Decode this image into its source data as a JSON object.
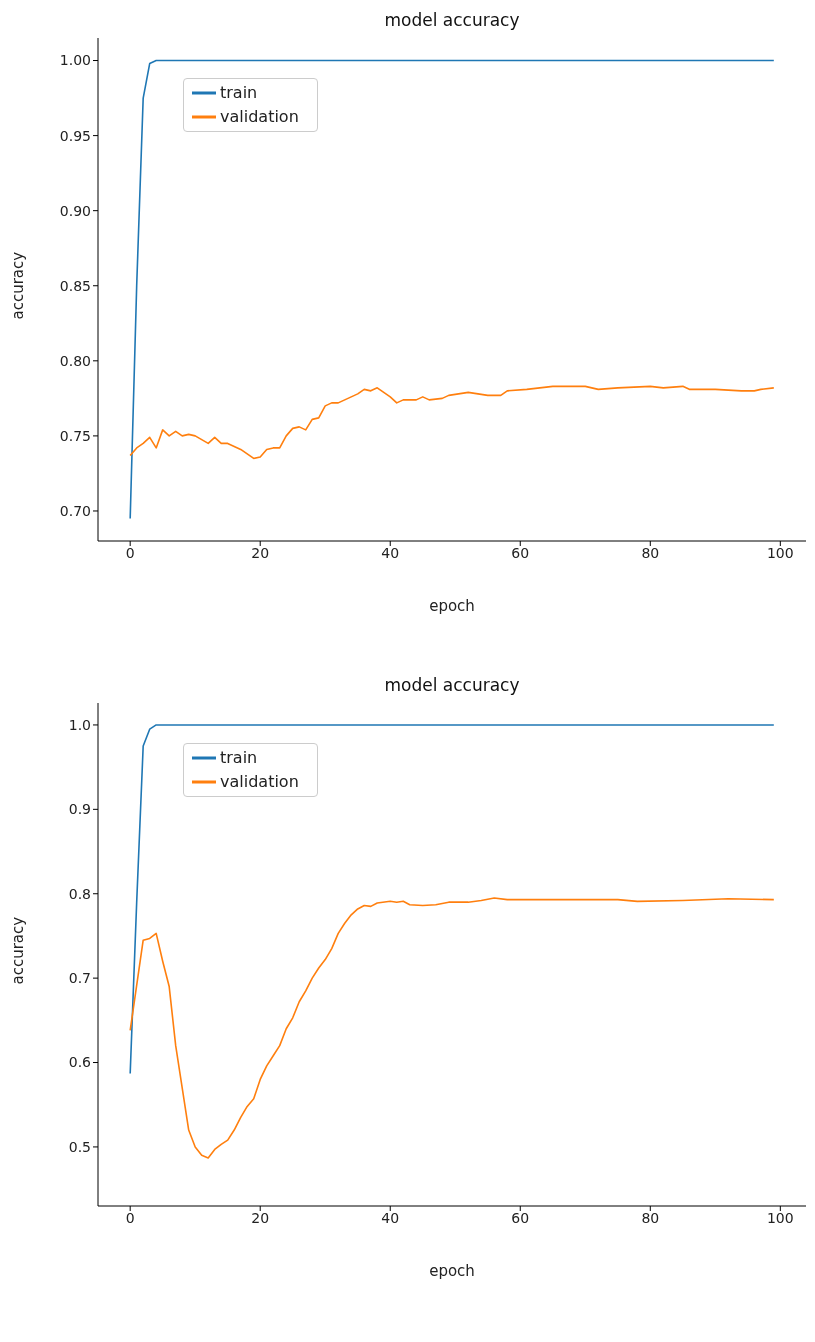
{
  "chart_data": [
    {
      "type": "line",
      "title": "model accuracy",
      "xlabel": "epoch",
      "ylabel": "accuracy",
      "legend": "top left",
      "grid": false,
      "marker": "none",
      "line_style": "solid",
      "xlim": [
        -4.95,
        103.95
      ],
      "xticks": [
        0,
        20,
        40,
        60,
        80,
        100
      ],
      "ylim": [
        0.68,
        1.015
      ],
      "yticks": [
        {
          "value": 0.7,
          "label": "0.70"
        },
        {
          "value": 0.75,
          "label": "0.75"
        },
        {
          "value": 0.8,
          "label": "0.80"
        },
        {
          "value": 0.85,
          "label": "0.85"
        },
        {
          "value": 0.9,
          "label": "0.90"
        },
        {
          "value": 0.95,
          "label": "0.95"
        },
        {
          "value": 1.0,
          "label": "1.00"
        }
      ],
      "series": [
        {
          "name": "train",
          "color": "#1f77b4",
          "x": [
            0,
            1,
            2,
            3,
            4,
            99
          ],
          "values": [
            0.695,
            0.85,
            0.975,
            0.998,
            1.0,
            1.0
          ]
        },
        {
          "name": "validation",
          "color": "#ff7f0e",
          "x": [
            0,
            1,
            2,
            3,
            4,
            5,
            6,
            7,
            8,
            9,
            10,
            12,
            13,
            14,
            15,
            17,
            19,
            20,
            21,
            22,
            23,
            24,
            25,
            26,
            27,
            28,
            29,
            30,
            31,
            32,
            33,
            35,
            36,
            37,
            38,
            40,
            41,
            42,
            44,
            45,
            46,
            48,
            49,
            52,
            55,
            57,
            58,
            61,
            63,
            65,
            70,
            72,
            75,
            80,
            82,
            85,
            86,
            90,
            94,
            96,
            97,
            99
          ],
          "values": [
            0.737,
            0.742,
            0.745,
            0.749,
            0.742,
            0.754,
            0.75,
            0.753,
            0.75,
            0.751,
            0.75,
            0.745,
            0.749,
            0.745,
            0.745,
            0.741,
            0.735,
            0.736,
            0.741,
            0.742,
            0.742,
            0.75,
            0.755,
            0.756,
            0.754,
            0.761,
            0.762,
            0.77,
            0.772,
            0.772,
            0.774,
            0.778,
            0.781,
            0.78,
            0.782,
            0.776,
            0.772,
            0.774,
            0.774,
            0.776,
            0.774,
            0.775,
            0.777,
            0.779,
            0.777,
            0.777,
            0.78,
            0.781,
            0.782,
            0.783,
            0.783,
            0.781,
            0.782,
            0.783,
            0.782,
            0.783,
            0.781,
            0.781,
            0.78,
            0.78,
            0.781,
            0.782
          ]
        }
      ]
    },
    {
      "type": "line",
      "title": "model accuracy",
      "xlabel": "epoch",
      "ylabel": "accuracy",
      "legend": "top left",
      "grid": false,
      "marker": "none",
      "line_style": "solid",
      "xlim": [
        -4.95,
        103.95
      ],
      "xticks": [
        0,
        20,
        40,
        60,
        80,
        100
      ],
      "ylim": [
        0.43,
        1.026
      ],
      "yticks": [
        {
          "value": 0.5,
          "label": "0.5"
        },
        {
          "value": 0.6,
          "label": "0.6"
        },
        {
          "value": 0.7,
          "label": "0.7"
        },
        {
          "value": 0.8,
          "label": "0.8"
        },
        {
          "value": 0.9,
          "label": "0.9"
        },
        {
          "value": 1.0,
          "label": "1.0"
        }
      ],
      "series": [
        {
          "name": "train",
          "color": "#1f77b4",
          "x": [
            0,
            1,
            2,
            3,
            4,
            99
          ],
          "values": [
            0.587,
            0.79,
            0.975,
            0.995,
            1.0,
            1.0
          ]
        },
        {
          "name": "validation",
          "color": "#ff7f0e",
          "x": [
            0,
            2,
            3,
            4,
            5,
            6,
            7,
            8,
            9,
            10,
            11,
            12,
            13,
            14,
            15,
            16,
            17,
            18,
            19,
            20,
            21,
            22,
            23,
            24,
            25,
            26,
            27,
            28,
            29,
            30,
            31,
            32,
            33,
            34,
            35,
            36,
            37,
            38,
            40,
            41,
            42,
            43,
            45,
            47,
            49,
            52,
            54,
            56,
            58,
            65,
            75,
            78,
            85,
            92,
            99
          ],
          "values": [
            0.638,
            0.745,
            0.747,
            0.753,
            0.72,
            0.69,
            0.62,
            0.57,
            0.52,
            0.5,
            0.49,
            0.487,
            0.497,
            0.503,
            0.508,
            0.52,
            0.535,
            0.548,
            0.557,
            0.58,
            0.596,
            0.608,
            0.62,
            0.64,
            0.653,
            0.672,
            0.685,
            0.7,
            0.712,
            0.722,
            0.735,
            0.753,
            0.765,
            0.775,
            0.782,
            0.786,
            0.785,
            0.789,
            0.791,
            0.79,
            0.791,
            0.787,
            0.786,
            0.787,
            0.79,
            0.79,
            0.792,
            0.795,
            0.793,
            0.793,
            0.793,
            0.791,
            0.792,
            0.794,
            0.793
          ]
        }
      ]
    }
  ]
}
